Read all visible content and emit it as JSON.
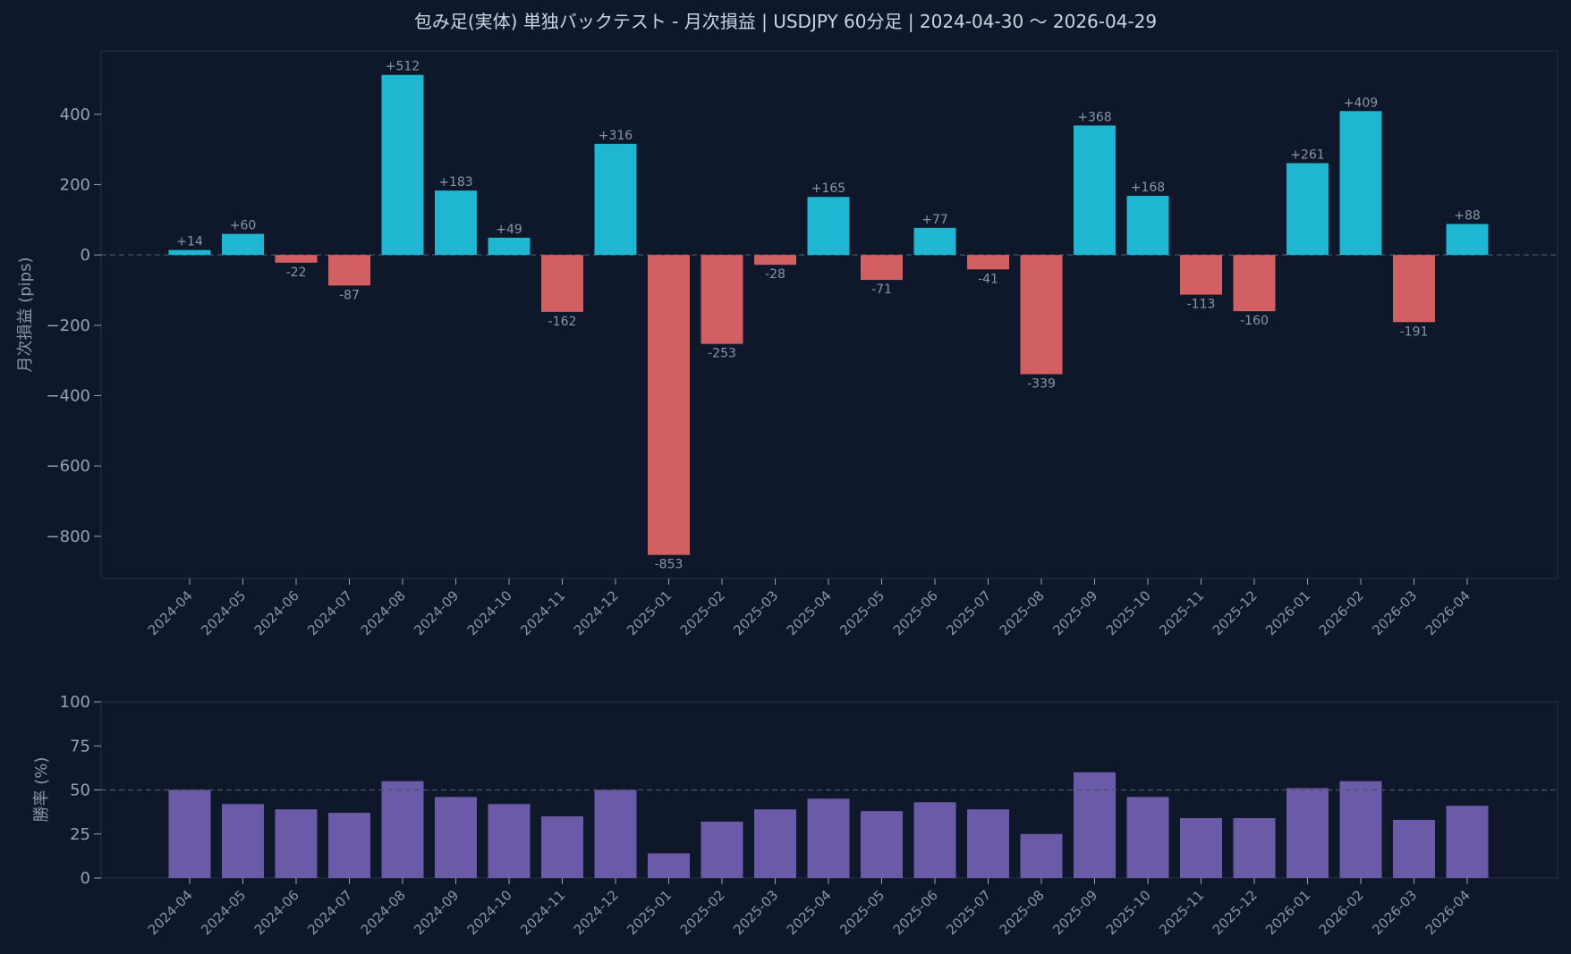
{
  "chart_data": [
    {
      "type": "bar",
      "title": "包み足(実体) 単独バックテスト - 月次損益 | USDJPY 60分足 | 2024-04-30 〜 2026-04-29",
      "ylabel": "月次損益 (pips)",
      "categories": [
        "2024-04",
        "2024-05",
        "2024-06",
        "2024-07",
        "2024-08",
        "2024-09",
        "2024-10",
        "2024-11",
        "2024-12",
        "2025-01",
        "2025-02",
        "2025-03",
        "2025-04",
        "2025-05",
        "2025-06",
        "2025-07",
        "2025-08",
        "2025-09",
        "2025-10",
        "2025-11",
        "2025-12",
        "2026-01",
        "2026-02",
        "2026-03",
        "2026-04"
      ],
      "values": [
        14,
        60,
        -22,
        -87,
        512,
        183,
        49,
        -162,
        316,
        -853,
        -253,
        -28,
        165,
        -71,
        77,
        -41,
        -339,
        368,
        168,
        -113,
        -160,
        261,
        409,
        -191,
        88
      ],
      "data_labels": [
        "+14",
        "+60",
        "-22",
        "-87",
        "+512",
        "+183",
        "+49",
        "-162",
        "+316",
        "-853",
        "-253",
        "-28",
        "+165",
        "-71",
        "+77",
        "-41",
        "-339",
        "+368",
        "+168",
        "-113",
        "-160",
        "+261",
        "+409",
        "-191",
        "+88"
      ],
      "ylim": [
        -920,
        580
      ],
      "yticks": [
        400,
        200,
        0,
        -200,
        -400,
        -600,
        -800
      ],
      "ytick_labels": [
        "400",
        "200",
        "0",
        "−200",
        "−400",
        "−600",
        "−800"
      ],
      "reference_line": 0,
      "colors": {
        "positive": "#1eb6d0",
        "negative": "#d26063"
      }
    },
    {
      "type": "bar",
      "ylabel": "勝率 (%)",
      "categories": [
        "2024-04",
        "2024-05",
        "2024-06",
        "2024-07",
        "2024-08",
        "2024-09",
        "2024-10",
        "2024-11",
        "2024-12",
        "2025-01",
        "2025-02",
        "2025-03",
        "2025-04",
        "2025-05",
        "2025-06",
        "2025-07",
        "2025-08",
        "2025-09",
        "2025-10",
        "2025-11",
        "2025-12",
        "2026-01",
        "2026-02",
        "2026-03",
        "2026-04"
      ],
      "values": [
        50,
        42,
        39,
        37,
        55,
        46,
        42,
        35,
        50,
        14,
        32,
        39,
        45,
        38,
        43,
        39,
        25,
        60,
        46,
        34,
        34,
        51,
        55,
        33,
        41
      ],
      "ylim": [
        0,
        100
      ],
      "yticks": [
        100,
        75,
        50,
        25,
        0
      ],
      "ytick_labels": [
        "100",
        "75",
        "50",
        "25",
        "0"
      ],
      "reference_line": 50,
      "colors": {
        "bar": "#6a5aa8"
      }
    }
  ],
  "colors": {
    "background": "#0f172a",
    "axes_border": "#1f2a3d",
    "reference_line": "#475569",
    "text": "#94a3b8"
  }
}
